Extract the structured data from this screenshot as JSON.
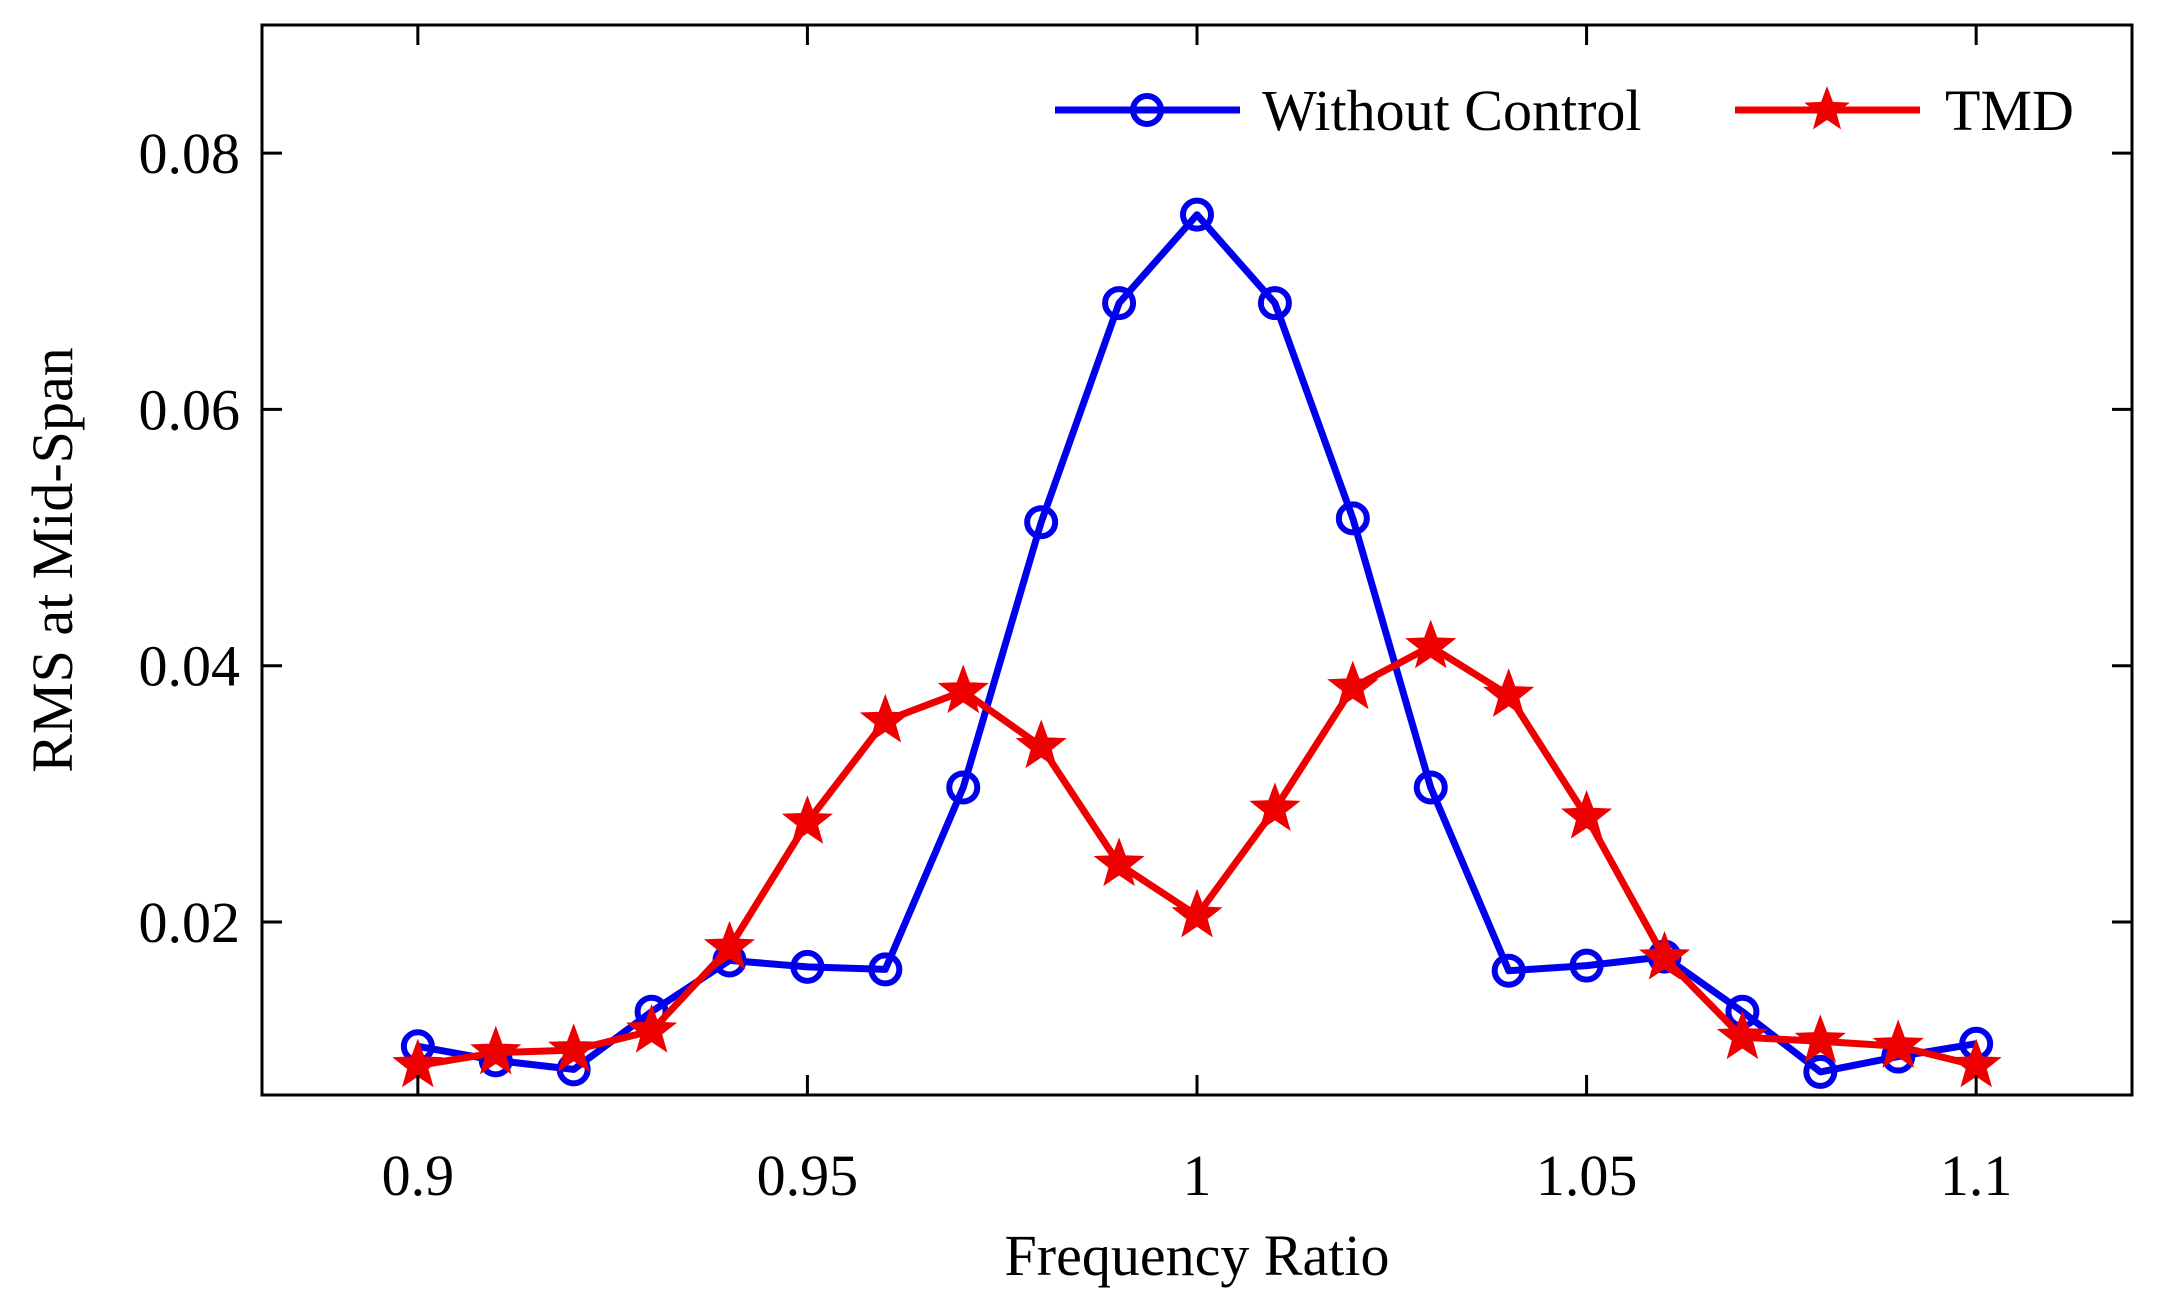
{
  "chart_data": {
    "type": "line",
    "title": "",
    "xlabel": "Frequency Ratio",
    "ylabel": "RMS at Mid-Span",
    "xlim": [
      0.88,
      1.12
    ],
    "ylim": [
      0.0065,
      0.09
    ],
    "x_ticks": [
      0.9,
      0.95,
      1.0,
      1.05,
      1.1
    ],
    "x_tick_labels": [
      "0.9",
      "0.95",
      "1",
      "1.05",
      "1.1"
    ],
    "y_ticks": [
      0.02,
      0.04,
      0.06,
      0.08
    ],
    "y_tick_labels": [
      "0.02",
      "0.04",
      "0.06",
      "0.08"
    ],
    "grid": false,
    "legend_position": "top-right",
    "x": [
      0.9,
      0.91,
      0.92,
      0.93,
      0.94,
      0.95,
      0.96,
      0.97,
      0.98,
      0.99,
      1.0,
      1.01,
      1.02,
      1.03,
      1.04,
      1.05,
      1.06,
      1.07,
      1.08,
      1.09,
      1.1
    ],
    "series": [
      {
        "name": "Without Control",
        "color": "#0000ee",
        "marker": "circle",
        "values": [
          0.0103,
          0.0092,
          0.0085,
          0.013,
          0.017,
          0.0165,
          0.0163,
          0.0305,
          0.0512,
          0.0683,
          0.0752,
          0.0683,
          0.0515,
          0.0305,
          0.0162,
          0.0166,
          0.0173,
          0.013,
          0.0083,
          0.0095,
          0.0105
        ]
      },
      {
        "name": "TMD",
        "color": "#ee0000",
        "marker": "star",
        "values": [
          0.0088,
          0.0098,
          0.01,
          0.0115,
          0.018,
          0.0278,
          0.0357,
          0.038,
          0.0337,
          0.0245,
          0.0205,
          0.0288,
          0.0383,
          0.0415,
          0.0377,
          0.0282,
          0.0172,
          0.011,
          0.0107,
          0.0103,
          0.0088
        ]
      }
    ]
  }
}
